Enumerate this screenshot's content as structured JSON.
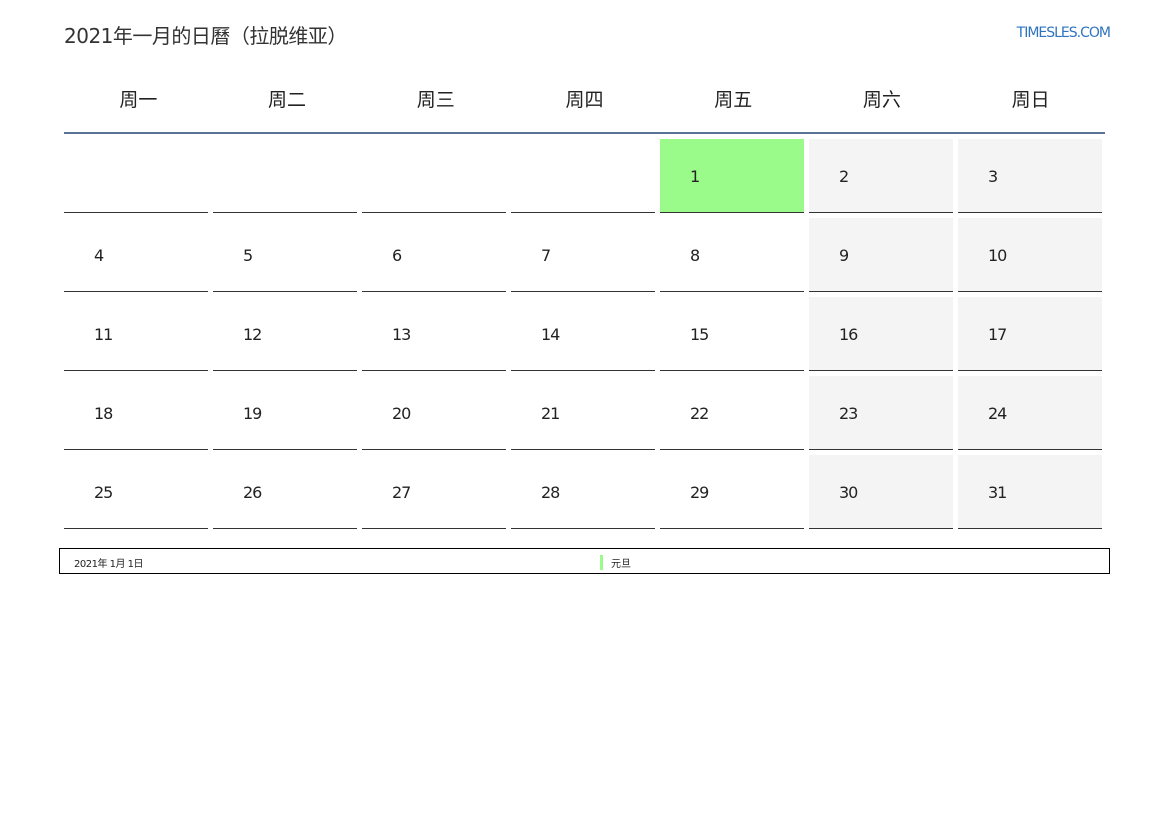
{
  "title": "2021年一月的日曆（拉脱维亚）",
  "logo": "TIMESLES.COM",
  "weekdays": [
    "周一",
    "周二",
    "周三",
    "周四",
    "周五",
    "周六",
    "周日"
  ],
  "colors": {
    "holiday": "#9afa8a",
    "weekend": "#f4f4f4",
    "header_line": "#5a7398",
    "logo": "#2f74c0"
  },
  "first_weekday_offset": 4,
  "days": [
    "1",
    "2",
    "3",
    "4",
    "5",
    "6",
    "7",
    "8",
    "9",
    "10",
    "11",
    "12",
    "13",
    "14",
    "15",
    "16",
    "17",
    "18",
    "19",
    "20",
    "21",
    "22",
    "23",
    "24",
    "25",
    "26",
    "27",
    "28",
    "29",
    "30",
    "31"
  ],
  "holidays": [
    {
      "date": "2021年 1月 1日",
      "name": "元旦",
      "day": 1
    }
  ]
}
